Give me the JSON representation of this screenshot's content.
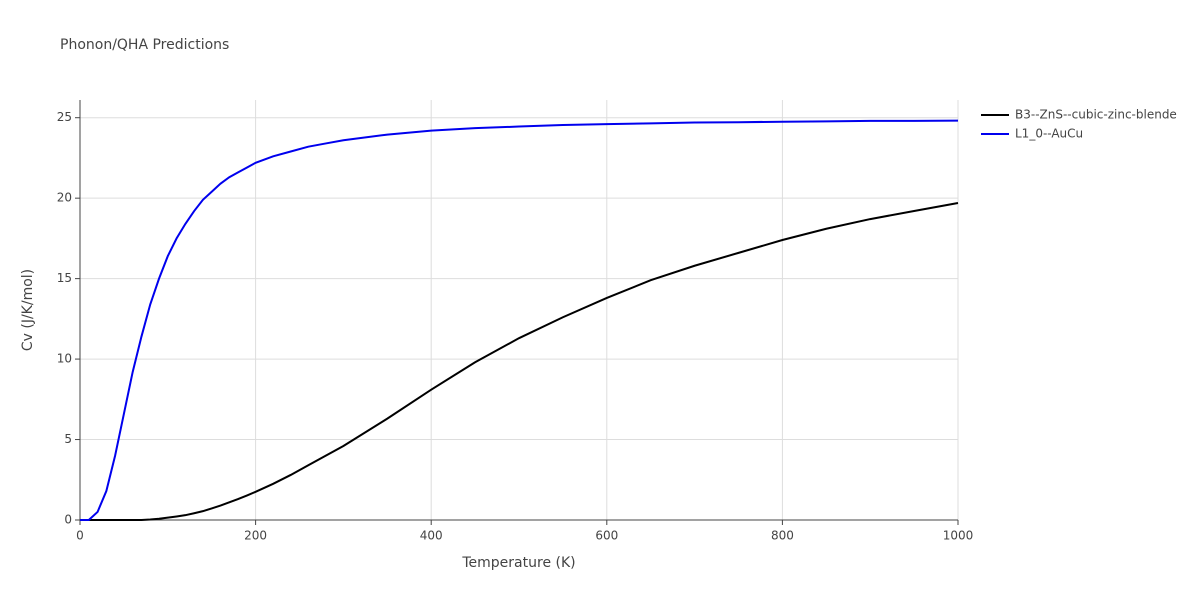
{
  "chart_data": {
    "type": "line",
    "title": "Phonon/QHA Predictions",
    "x_label": "Temperature (K)",
    "y_label": "Cv (J/K/mol)",
    "x": [
      0,
      10,
      20,
      30,
      40,
      50,
      60,
      70,
      80,
      90,
      100,
      110,
      120,
      130,
      140,
      150,
      160,
      170,
      180,
      190,
      200,
      220,
      240,
      260,
      280,
      300,
      350,
      400,
      450,
      500,
      550,
      600,
      650,
      700,
      750,
      800,
      850,
      900,
      950,
      1000
    ],
    "series": [
      {
        "name": "B3--ZnS--cubic-zinc-blende",
        "color": "#000000",
        "values": [
          0,
          0,
          0,
          0,
          0,
          0,
          0,
          0,
          0.03,
          0.08,
          0.15,
          0.22,
          0.3,
          0.42,
          0.55,
          0.72,
          0.9,
          1.1,
          1.3,
          1.52,
          1.75,
          2.25,
          2.8,
          3.4,
          4.0,
          4.6,
          6.3,
          8.1,
          9.8,
          11.3,
          12.6,
          13.8,
          14.9,
          15.8,
          16.6,
          17.4,
          18.1,
          18.7,
          19.2,
          19.7
        ]
      },
      {
        "name": "L1_0--AuCu",
        "color": "#0000ee",
        "values": [
          0,
          0,
          0.5,
          1.8,
          4.0,
          6.6,
          9.2,
          11.4,
          13.4,
          15.0,
          16.4,
          17.5,
          18.4,
          19.2,
          19.9,
          20.4,
          20.9,
          21.3,
          21.6,
          21.9,
          22.2,
          22.6,
          22.9,
          23.2,
          23.4,
          23.6,
          23.95,
          24.2,
          24.35,
          24.45,
          24.55,
          24.6,
          24.65,
          24.7,
          24.72,
          24.75,
          24.77,
          24.8,
          24.8,
          24.82
        ]
      }
    ],
    "xlim": [
      0,
      1000
    ],
    "xticks": [
      0,
      200,
      400,
      600,
      800,
      1000
    ],
    "ylim": [
      0,
      26.1
    ],
    "yticks": [
      0,
      5,
      10,
      15,
      20,
      25
    ],
    "grid": true,
    "legend": "right"
  }
}
